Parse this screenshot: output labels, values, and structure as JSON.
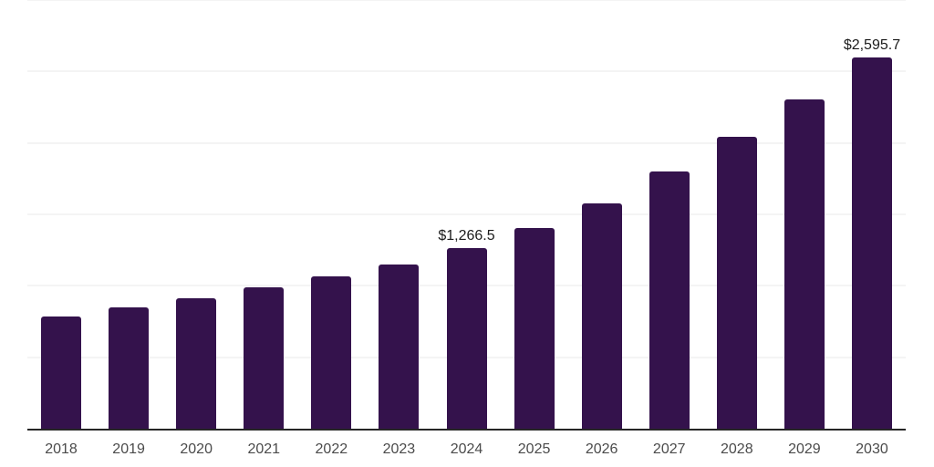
{
  "chart_data": {
    "type": "bar",
    "title": "",
    "xlabel": "",
    "ylabel": "",
    "legend": "none",
    "grid": "horizontal",
    "categories": [
      "2018",
      "2019",
      "2020",
      "2021",
      "2022",
      "2023",
      "2024",
      "2025",
      "2026",
      "2027",
      "2028",
      "2029",
      "2030"
    ],
    "values": [
      785,
      848,
      912,
      989,
      1065,
      1148,
      1266.5,
      1404,
      1576,
      1799,
      2042,
      2303,
      2595.7
    ],
    "value_labels": [
      {
        "category": "2024",
        "text": "$1,266.5"
      },
      {
        "category": "2030",
        "text": "$2,595.7"
      }
    ],
    "ylim": [
      0,
      3000
    ],
    "gridline_step": 500,
    "colors": {
      "bar": "#34124C",
      "gridline": "#f4f4f4",
      "axis_line": "#262626",
      "tick_label": "#4b4b4b",
      "value_label": "#1c1c1c",
      "background": "#ffffff"
    }
  }
}
